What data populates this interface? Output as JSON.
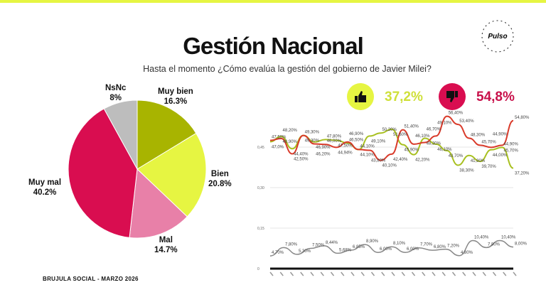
{
  "header": {
    "title": "Gestión Nacional",
    "subtitle": "Hasta el momento ¿Cómo evalúa la gestión del gobierno de Javier Milei?",
    "logo_text": "BRUJULA SOCIAL",
    "logo_brand": "Pulso"
  },
  "footer": "BRUJULA SOCIAL - MARZO 2026",
  "summary": {
    "approve": {
      "icon": "thumbs-up-icon",
      "value": "37,2%",
      "color": "#e6f542"
    },
    "disapprove": {
      "icon": "thumbs-down-icon",
      "value": "54,8%",
      "color": "#d90d50"
    }
  },
  "chart_data": [
    {
      "type": "pie",
      "slices": [
        {
          "label": "Muy bien",
          "display": "16.3%",
          "value": 16.3,
          "color": "#a8b400"
        },
        {
          "label": "Bien",
          "display": "20.8%",
          "value": 20.8,
          "color": "#e6f542"
        },
        {
          "label": "Mal",
          "display": "14.7%",
          "value": 14.7,
          "color": "#e880a8"
        },
        {
          "label": "Muy mal",
          "display": "40.2%",
          "value": 40.2,
          "color": "#d90d50"
        },
        {
          "label": "NsNc",
          "display": "8%",
          "value": 8,
          "color": "#bdbdbd"
        }
      ]
    },
    {
      "type": "line",
      "yticks": [
        "0,45",
        "0,30",
        "0,15",
        "0"
      ],
      "ylim": [
        0,
        60
      ],
      "grid": false,
      "series": [
        {
          "color": "#a8c020",
          "values": [
            47.0,
            48.9,
            44.4,
            49.3,
            46.9,
            47.8,
            47.5,
            46.5,
            44.1,
            49.1,
            50.2,
            51.6,
            45.9,
            42.2,
            48.3,
            46.1,
            43.7,
            38.3,
            41.9,
            39.7,
            44.0,
            44.9,
            37.2
          ],
          "labels": [
            "47,0%",
            "48,90%",
            "44,40%",
            "49,30%",
            "46,90%",
            "47,80%",
            "47,50%",
            "46,50%",
            "44,10%",
            "49,10%",
            "50,20%",
            "51,60%",
            "45,90%",
            "42,20%",
            "48,30%",
            "46,10%",
            "43,70%",
            "38,30%",
            "41,90%",
            "39,70%",
            "44,00%",
            "44,90%",
            "37,20%"
          ]
        },
        {
          "color": "#d93a2a",
          "values": [
            47.5,
            48.2,
            42.5,
            49.3,
            46.2,
            46.0,
            44.9,
            46.9,
            44.1,
            43.8,
            40.1,
            42.4,
            51.4,
            46.1,
            46.7,
            49.1,
            56.4,
            53.4,
            48.3,
            45.7,
            44.9,
            45.7,
            54.8
          ],
          "labels": [
            "47,50%",
            "48,20%",
            "42,50%",
            "49,30%",
            "46,20%",
            "46,00%",
            "44,94%",
            "46,90%",
            "44,10%",
            "43,80%",
            "40,10%",
            "42,40%",
            "51,40%",
            "46,10%",
            "46,70%",
            "49,10%",
            "56,40%",
            "53,40%",
            "48,30%",
            "45,70%",
            "44,90%",
            "45,70%",
            "54,80%"
          ]
        },
        {
          "color": "#888888",
          "values": [
            4.7,
            7.8,
            5.3,
            7.5,
            8.44,
            5.68,
            6.85,
            8.9,
            6.0,
            8.1,
            6.0,
            7.7,
            6.8,
            7.2,
            4.8,
            10.4,
            7.8,
            10.4,
            8.0
          ],
          "labels": [
            "4,70%",
            "7,80%",
            "5,30%",
            "7,50%",
            "8,44%",
            "5,68%",
            "6,85%",
            "8,90%",
            "6,00%",
            "8,10%",
            "6,00%",
            "7,70%",
            "6,80%",
            "7,20%",
            "4,80%",
            "10,40%",
            "7,80%",
            "10,40%",
            "8,00%"
          ]
        }
      ]
    }
  ]
}
